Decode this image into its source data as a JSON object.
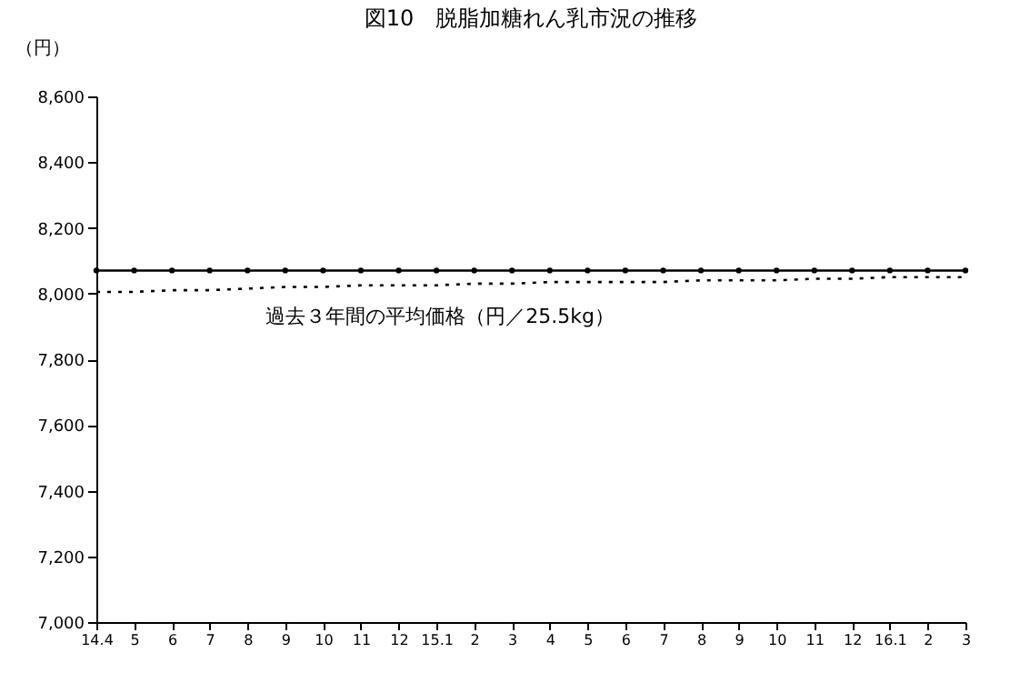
{
  "chart_data": {
    "type": "line",
    "title": "図10　脱脂加糖れん乳市況の推移",
    "ylabel": "（円）",
    "categories": [
      "14.4",
      "5",
      "6",
      "7",
      "8",
      "9",
      "10",
      "11",
      "12",
      "15.1",
      "2",
      "3",
      "4",
      "5",
      "6",
      "7",
      "8",
      "9",
      "10",
      "11",
      "12",
      "16.1",
      "2",
      "3"
    ],
    "series": [
      {
        "color": "#000000",
        "marker": "circle",
        "line_style": "solid",
        "values": [
          8070,
          8070,
          8070,
          8070,
          8070,
          8070,
          8070,
          8070,
          8070,
          8070,
          8070,
          8070,
          8070,
          8070,
          8070,
          8070,
          8070,
          8070,
          8070,
          8070,
          8070,
          8070,
          8070,
          8070
        ]
      },
      {
        "name": "過去３年間の平均価格（円／25.5kg）",
        "color": "#000000",
        "marker": "none",
        "line_style": "dotted",
        "values": [
          8005,
          8005,
          8010,
          8010,
          8015,
          8020,
          8020,
          8025,
          8025,
          8025,
          8030,
          8030,
          8035,
          8035,
          8035,
          8035,
          8040,
          8040,
          8040,
          8045,
          8045,
          8050,
          8050,
          8050
        ]
      }
    ],
    "ylim": [
      7000,
      8600
    ],
    "yticks": [
      {
        "value": 7000,
        "label": "7,000"
      },
      {
        "value": 7200,
        "label": "7,200"
      },
      {
        "value": 7400,
        "label": "7,400"
      },
      {
        "value": 7600,
        "label": "7,600"
      },
      {
        "value": 7800,
        "label": "7,800"
      },
      {
        "value": 8000,
        "label": "8,000"
      },
      {
        "value": 8200,
        "label": "8,200"
      },
      {
        "value": 8400,
        "label": "8,400"
      },
      {
        "value": 8600,
        "label": "8,600"
      }
    ],
    "grid": false
  }
}
